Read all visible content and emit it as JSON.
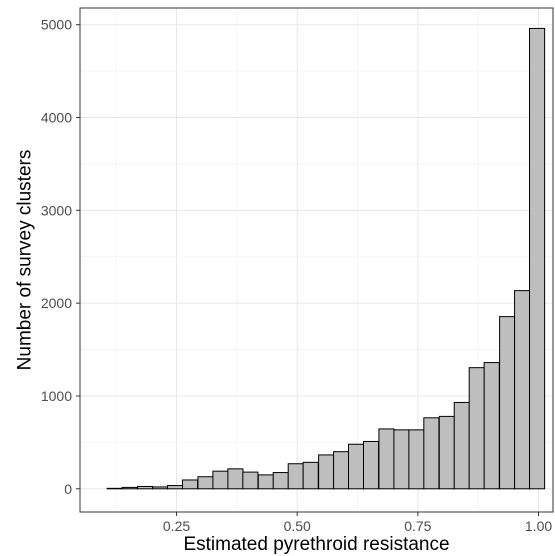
{
  "chart_data": {
    "type": "bar",
    "title": "",
    "xlabel": "Estimated pyrethroid resistance",
    "ylabel": "Number of survey clusters",
    "xlim": [
      0.05,
      1.03
    ],
    "ylim": [
      -250,
      5180
    ],
    "x_ticks": [
      0.25,
      0.5,
      0.75,
      1.0
    ],
    "x_tick_labels": [
      "0.25",
      "0.50",
      "0.75",
      "1.00"
    ],
    "y_ticks": [
      0,
      1000,
      2000,
      3000,
      4000,
      5000
    ],
    "y_tick_labels": [
      "0",
      "1000",
      "2000",
      "3000",
      "4000",
      "5000"
    ],
    "grid": true,
    "bar_fill": "#bebebe",
    "bar_stroke": "#000000",
    "bin_width": 0.0313,
    "bins": [
      {
        "x": 0.091,
        "value": 0
      },
      {
        "x": 0.122,
        "value": 5
      },
      {
        "x": 0.153,
        "value": 15
      },
      {
        "x": 0.185,
        "value": 25
      },
      {
        "x": 0.216,
        "value": 20
      },
      {
        "x": 0.247,
        "value": 35
      },
      {
        "x": 0.278,
        "value": 95
      },
      {
        "x": 0.31,
        "value": 130
      },
      {
        "x": 0.341,
        "value": 190
      },
      {
        "x": 0.372,
        "value": 215
      },
      {
        "x": 0.403,
        "value": 180
      },
      {
        "x": 0.435,
        "value": 150
      },
      {
        "x": 0.466,
        "value": 175
      },
      {
        "x": 0.497,
        "value": 270
      },
      {
        "x": 0.528,
        "value": 285
      },
      {
        "x": 0.56,
        "value": 365
      },
      {
        "x": 0.591,
        "value": 400
      },
      {
        "x": 0.622,
        "value": 480
      },
      {
        "x": 0.653,
        "value": 510
      },
      {
        "x": 0.685,
        "value": 645
      },
      {
        "x": 0.716,
        "value": 635
      },
      {
        "x": 0.747,
        "value": 635
      },
      {
        "x": 0.778,
        "value": 765
      },
      {
        "x": 0.81,
        "value": 780
      },
      {
        "x": 0.841,
        "value": 930
      },
      {
        "x": 0.872,
        "value": 1305
      },
      {
        "x": 0.903,
        "value": 1360
      },
      {
        "x": 0.935,
        "value": 1855
      },
      {
        "x": 0.966,
        "value": 2135
      },
      {
        "x": 0.997,
        "value": 4960
      }
    ]
  }
}
